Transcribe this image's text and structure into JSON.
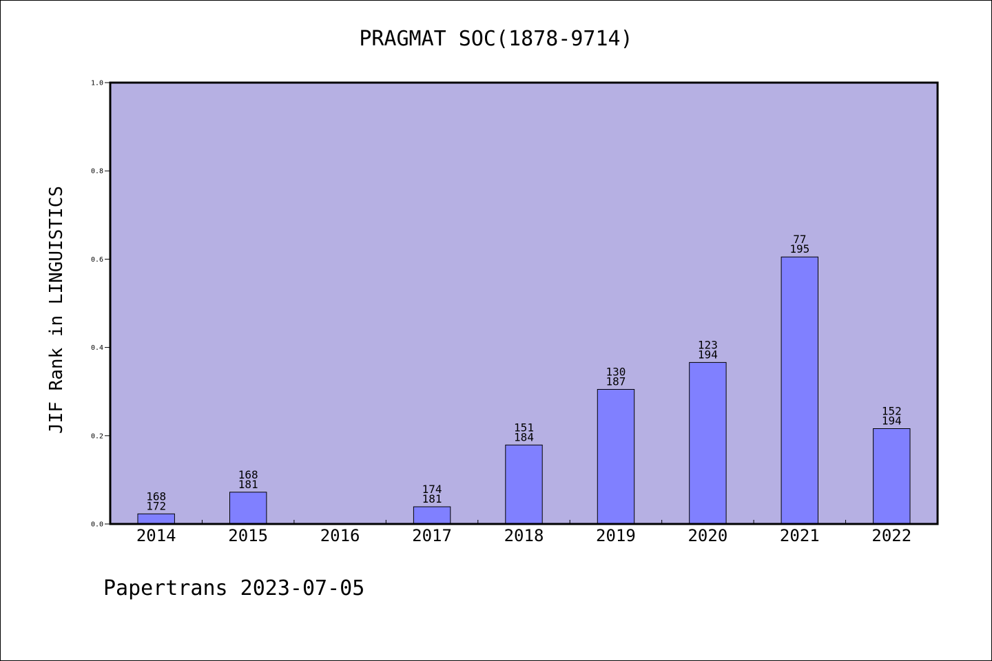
{
  "chart_data": {
    "type": "bar",
    "title": "PRAGMAT SOC(1878-9714)",
    "xlabel": "",
    "ylabel": "JIF Rank in LINGUISTICS",
    "footer": "Papertrans 2023-07-05",
    "ylim": [
      0,
      1.0
    ],
    "yticks": [
      "0.0",
      "0.2",
      "0.4",
      "0.6",
      "0.8",
      "1.0"
    ],
    "grid": false,
    "categories": [
      "2014",
      "2015",
      "2016",
      "2017",
      "2018",
      "2019",
      "2020",
      "2021",
      "2022"
    ],
    "values": [
      0.023,
      0.072,
      null,
      0.039,
      0.179,
      0.305,
      0.366,
      0.605,
      0.216
    ],
    "labels_top": [
      "168",
      "168",
      "",
      "174",
      "151",
      "130",
      "123",
      "77",
      "152"
    ],
    "labels_bottom": [
      "172",
      "181",
      "",
      "181",
      "184",
      "187",
      "194",
      "195",
      "194"
    ],
    "colors": {
      "plot_background": "#b6b0e3",
      "bar_fill": "#8080ff",
      "bar_edge": "#000000"
    }
  }
}
